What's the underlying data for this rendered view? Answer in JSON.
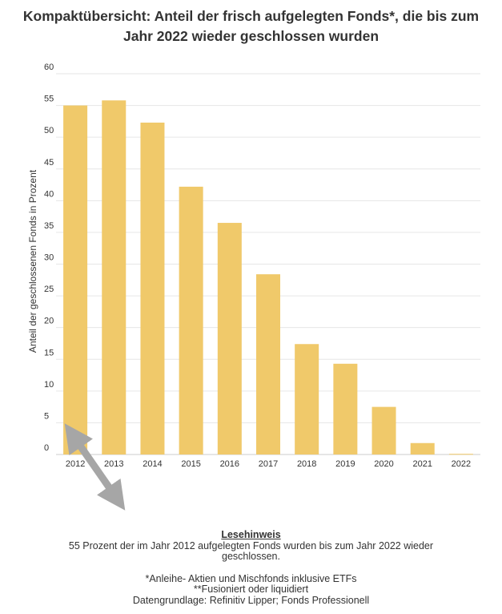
{
  "title_line1": "Kompaktübersicht: Anteil der frisch aufgelegten Fonds*, die bis zum",
  "title_line2": "Jahr 2022 wieder geschlossen wurden",
  "chart_data": {
    "type": "bar",
    "title": "Kompaktübersicht: Anteil der frisch aufgelegten Fonds*, die bis zum Jahr 2022 wieder geschlossen wurden",
    "xlabel": "",
    "ylabel": "Anteil der geschlossenen Fonds in Prozent",
    "categories": [
      "2012",
      "2013",
      "2014",
      "2015",
      "2016",
      "2017",
      "2018",
      "2019",
      "2020",
      "2021",
      "2022"
    ],
    "values": [
      55,
      55.8,
      52.3,
      42.2,
      36.5,
      28.4,
      17.4,
      14.3,
      7.5,
      1.8,
      0.1
    ],
    "ylim": [
      0,
      60
    ],
    "yticks": [
      0,
      5,
      10,
      15,
      20,
      25,
      30,
      35,
      40,
      45,
      50,
      55,
      60
    ],
    "grid": true,
    "bar_color": "#f0c96a",
    "arrow_color": "#a6a6a6"
  },
  "notes": {
    "heading": "Lesehinweis",
    "line1": "55 Prozent der im Jahr 2012 aufgelegten Fonds wurden bis zum Jahr 2022 wieder",
    "line2": "geschlossen.",
    "line3": "*Anleihe- Aktien und Mischfonds inklusive ETFs",
    "line4": "**Fusioniert oder liquidiert",
    "line5": "Datengrundlage: Refinitiv Lipper; Fonds Professionell"
  }
}
